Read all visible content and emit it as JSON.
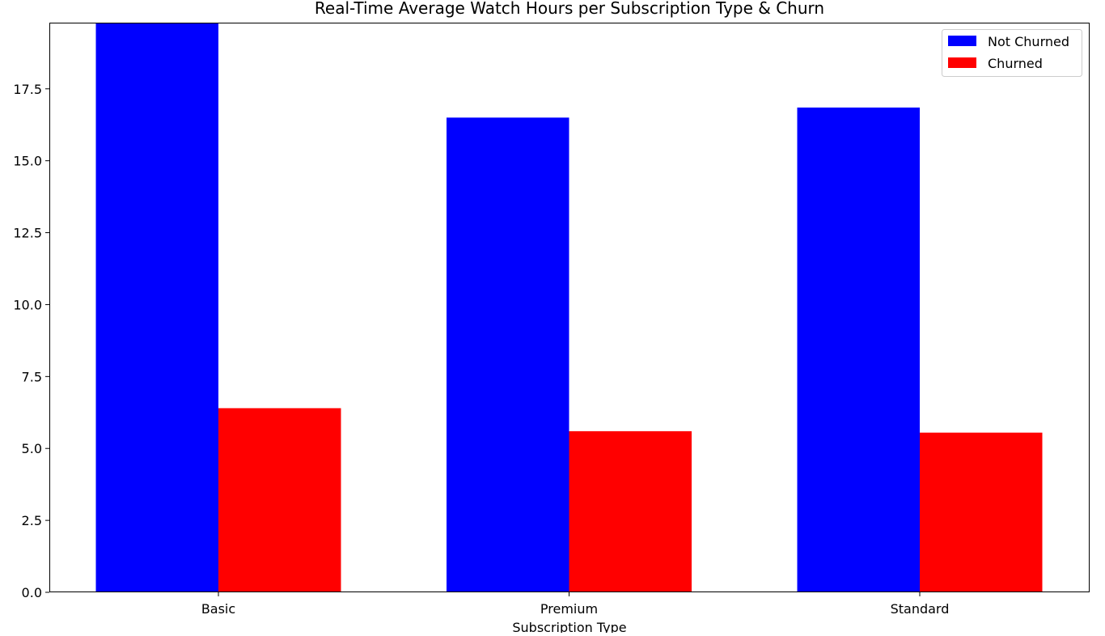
{
  "chart_data": {
    "type": "bar",
    "title": "Real-Time Average Watch Hours per Subscription Type & Churn",
    "xlabel": "Subscription Type",
    "ylabel": "",
    "categories": [
      "Basic",
      "Premium",
      "Standard"
    ],
    "series": [
      {
        "name": "Not Churned",
        "color": "#0000ff",
        "values": [
          20.5,
          16.5,
          16.85
        ]
      },
      {
        "name": "Churned",
        "color": "#ff0000",
        "values": [
          6.4,
          5.6,
          5.55
        ]
      }
    ],
    "ylim": [
      0,
      19.8
    ],
    "yticks": [
      0.0,
      2.5,
      5.0,
      7.5,
      10.0,
      12.5,
      15.0,
      17.5
    ],
    "ytick_labels": [
      "0.0",
      "2.5",
      "5.0",
      "7.5",
      "10.0",
      "12.5",
      "15.0",
      "17.5"
    ],
    "legend_position": "top-right",
    "grid": false
  }
}
